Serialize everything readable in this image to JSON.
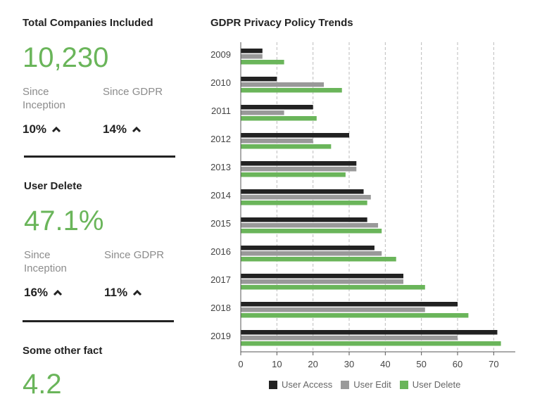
{
  "stats": [
    {
      "title": "Total Companies Included",
      "value": "10,230",
      "since_left_label": "Since Inception",
      "since_right_label": "Since GDPR",
      "left_pct": "10%",
      "right_pct": "14%",
      "left_trend_icon": "arrow-up-icon",
      "right_trend_icon": "arrow-up-icon"
    },
    {
      "title": "User Delete",
      "value": "47.1%",
      "since_left_label": "Since Inception",
      "since_right_label": "Since GDPR",
      "left_pct": "16%",
      "right_pct": "11%",
      "left_trend_icon": "arrow-up-icon",
      "right_trend_icon": "arrow-up-icon"
    },
    {
      "title": "Some other fact",
      "value": "4.2"
    }
  ],
  "colors": {
    "accent_green": "#6ab55a",
    "user_access": "#222222",
    "user_edit": "#999999",
    "user_delete": "#6ab55a",
    "text_dark": "#222222",
    "text_muted": "#8c8c8c"
  },
  "chart_data": {
    "type": "bar",
    "orientation": "horizontal",
    "title": "GDPR Privacy Policy Trends",
    "categories": [
      "2009",
      "2010",
      "2011",
      "2012",
      "2013",
      "2014",
      "2015",
      "2016",
      "2017",
      "2018",
      "2019"
    ],
    "series": [
      {
        "name": "User Access",
        "color": "#222222",
        "values": [
          6,
          10,
          20,
          30,
          32,
          34,
          35,
          37,
          45,
          60,
          71
        ]
      },
      {
        "name": "User Edit",
        "color": "#999999",
        "values": [
          6,
          23,
          12,
          20,
          32,
          36,
          38,
          39,
          45,
          51,
          60
        ]
      },
      {
        "name": "User Delete",
        "color": "#6ab55a",
        "values": [
          12,
          28,
          21,
          25,
          29,
          35,
          39,
          43,
          51,
          63,
          72
        ]
      }
    ],
    "xlim": [
      0,
      75
    ],
    "xticks": [
      0,
      10,
      20,
      30,
      40,
      50,
      60,
      70
    ],
    "grid": "vertical dashed",
    "legend_position": "bottom"
  }
}
